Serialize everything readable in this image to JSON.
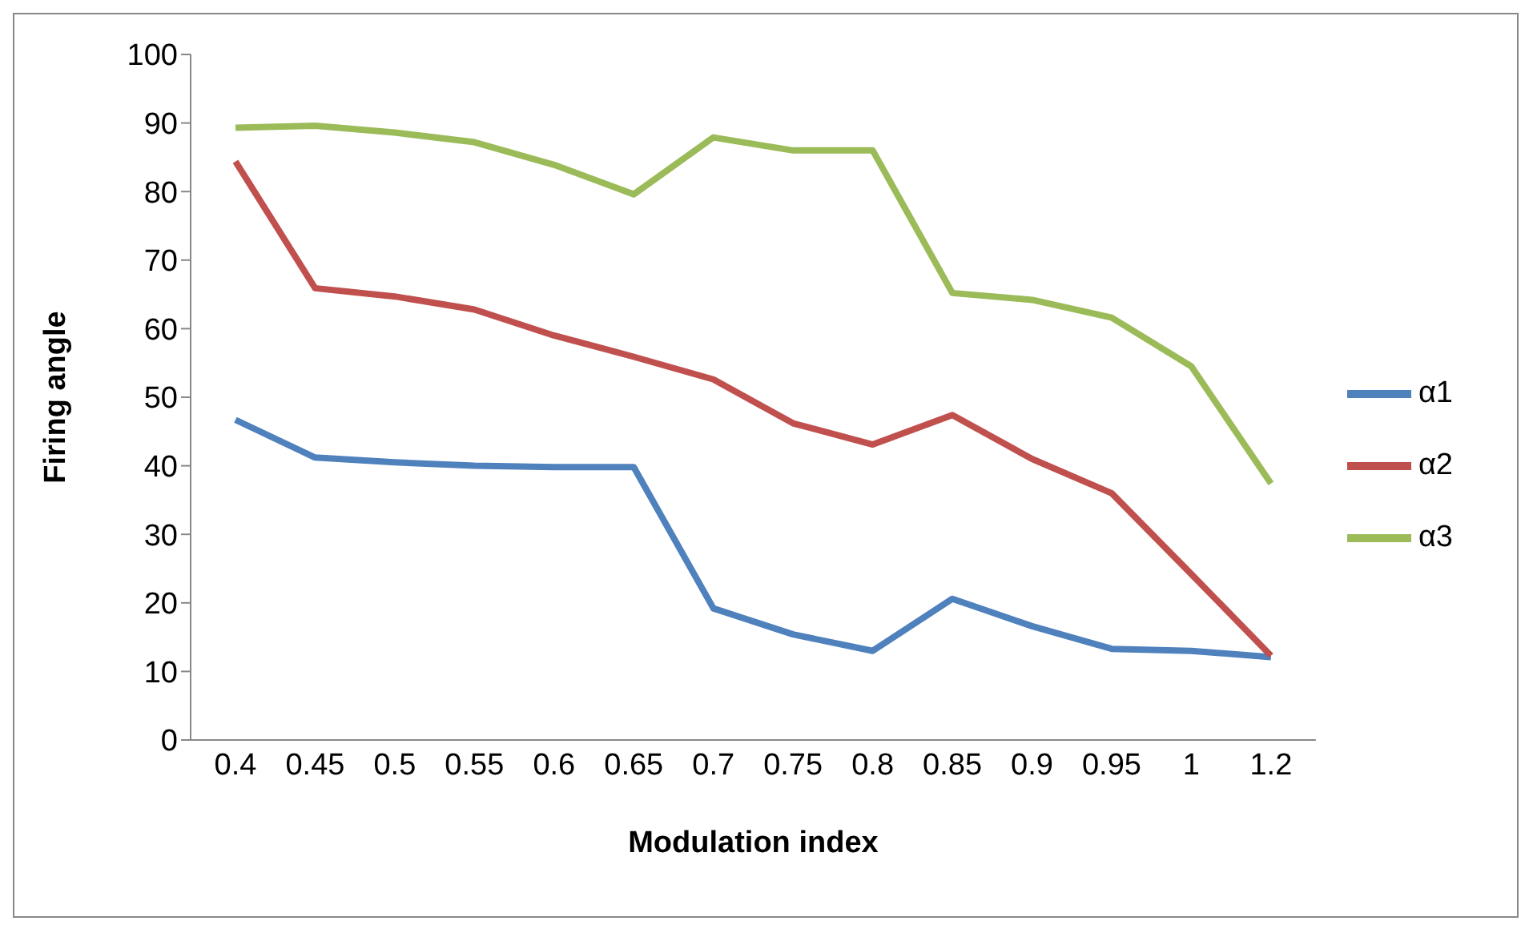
{
  "chart_data": {
    "type": "line",
    "xlabel": "Modulation index",
    "ylabel": "Firing angle",
    "categories": [
      "0.4",
      "0.45",
      "0.5",
      "0.55",
      "0.6",
      "0.65",
      "0.7",
      "0.75",
      "0.8",
      "0.85",
      "0.9",
      "0.95",
      "1",
      "1.2"
    ],
    "series": [
      {
        "name": "α1",
        "color": "#4f81bd",
        "values": [
          46.7,
          41.2,
          40.5,
          40.0,
          39.8,
          39.8,
          19.2,
          15.4,
          13.0,
          20.6,
          16.6,
          13.3,
          13.0,
          12.1
        ]
      },
      {
        "name": "α2",
        "color": "#c0504d",
        "values": [
          84.4,
          65.9,
          64.7,
          62.8,
          59.0,
          55.9,
          52.6,
          46.2,
          43.1,
          47.4,
          41.0,
          36.0,
          24.2,
          12.3
        ]
      },
      {
        "name": "α3",
        "color": "#9bbb59",
        "values": [
          89.3,
          89.6,
          88.6,
          87.2,
          83.9,
          79.6,
          87.9,
          86.0,
          86.0,
          65.2,
          64.2,
          61.6,
          54.5,
          37.4
        ]
      }
    ],
    "ylim": [
      0,
      100
    ],
    "yticks": [
      0,
      10,
      20,
      30,
      40,
      50,
      60,
      70,
      80,
      90,
      100
    ],
    "grid": false,
    "legend": "right",
    "marker": "none",
    "line_style": "solid"
  }
}
